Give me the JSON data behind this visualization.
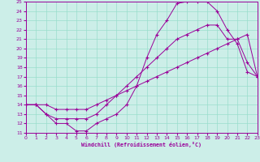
{
  "xlabel": "Windchill (Refroidissement éolien,°C)",
  "bg_color": "#cceee8",
  "grid_color": "#99ddcc",
  "line_color": "#990099",
  "xmin": 0,
  "xmax": 23,
  "ymin": 11,
  "ymax": 25,
  "line1_x": [
    0,
    1,
    2,
    3,
    4,
    5,
    6,
    7,
    8,
    9,
    10,
    11,
    12,
    13,
    14,
    15,
    16,
    17,
    18,
    19,
    20,
    21,
    22,
    23
  ],
  "line1_y": [
    14.0,
    14.0,
    13.0,
    12.0,
    12.0,
    11.2,
    11.2,
    12.0,
    12.5,
    13.0,
    14.0,
    16.0,
    19.0,
    21.5,
    23.0,
    24.8,
    25.0,
    25.0,
    25.0,
    24.0,
    22.0,
    20.5,
    17.5,
    17.0
  ],
  "line2_x": [
    0,
    1,
    2,
    3,
    4,
    5,
    6,
    7,
    8,
    9,
    10,
    11,
    12,
    13,
    14,
    15,
    16,
    17,
    18,
    19,
    20,
    21,
    22,
    23
  ],
  "line2_y": [
    14.0,
    14.0,
    13.0,
    12.5,
    12.5,
    12.5,
    12.5,
    13.0,
    14.0,
    15.0,
    16.0,
    17.0,
    18.0,
    19.0,
    20.0,
    21.0,
    21.5,
    22.0,
    22.5,
    22.5,
    21.0,
    21.0,
    18.5,
    17.0
  ],
  "line3_x": [
    0,
    1,
    2,
    3,
    4,
    5,
    6,
    7,
    8,
    9,
    10,
    11,
    12,
    13,
    14,
    15,
    16,
    17,
    18,
    19,
    20,
    21,
    22,
    23
  ],
  "line3_y": [
    14.0,
    14.0,
    14.0,
    13.5,
    13.5,
    13.5,
    13.5,
    14.0,
    14.5,
    15.0,
    15.5,
    16.0,
    16.5,
    17.0,
    17.5,
    18.0,
    18.5,
    19.0,
    19.5,
    20.0,
    20.5,
    21.0,
    21.5,
    17.0
  ],
  "xticks": [
    0,
    1,
    2,
    3,
    4,
    5,
    6,
    7,
    8,
    9,
    10,
    11,
    12,
    13,
    14,
    15,
    16,
    17,
    18,
    19,
    20,
    21,
    22,
    23
  ],
  "yticks": [
    11,
    12,
    13,
    14,
    15,
    16,
    17,
    18,
    19,
    20,
    21,
    22,
    23,
    24,
    25
  ]
}
